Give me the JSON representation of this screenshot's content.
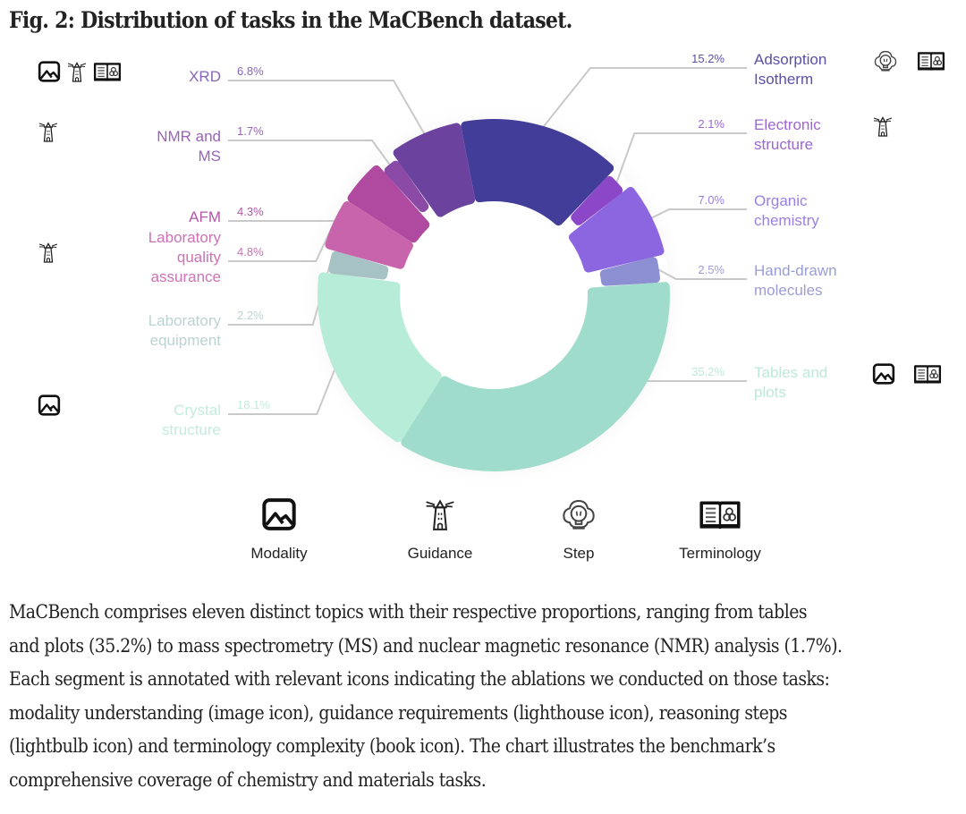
{
  "figure": {
    "title": "Fig. 2: Distribution of tasks in the MaCBench dataset."
  },
  "chart_data": {
    "type": "pie",
    "variant": "donut",
    "title": "Distribution of tasks in the MaCBench dataset",
    "order": "clockwise from top",
    "segments": [
      {
        "name": "Adsorption Isotherm",
        "label_lines": [
          "Adsorption",
          "Isotherm"
        ],
        "value": 15.2,
        "pct_label": "15.2%",
        "color": "#433d9a",
        "text_color": "#5b4fa8",
        "side": "right",
        "icons": [
          "step-icon",
          "terminology-icon"
        ]
      },
      {
        "name": "Electronic structure",
        "label_lines": [
          "Electronic",
          "structure"
        ],
        "value": 2.1,
        "pct_label": "2.1%",
        "color": "#8b47c8",
        "text_color": "#9d66d6",
        "side": "right",
        "icons": [
          "guidance-icon"
        ]
      },
      {
        "name": "Organic chemistry",
        "label_lines": [
          "Organic",
          "chemistry"
        ],
        "value": 7.0,
        "pct_label": "7.0%",
        "color": "#8c65e0",
        "text_color": "#9a80e3",
        "side": "right",
        "icons": []
      },
      {
        "name": "Hand-drawn molecules",
        "label_lines": [
          "Hand-drawn",
          "molecules"
        ],
        "value": 2.5,
        "pct_label": "2.5%",
        "color": "#8c8fd2",
        "text_color": "#9b9dd6",
        "side": "right",
        "icons": []
      },
      {
        "name": "Tables and plots",
        "label_lines": [
          "Tables and",
          "plots"
        ],
        "value": 35.2,
        "pct_label": "35.2%",
        "color": "#a0dccb",
        "text_color": "#bde8da",
        "side": "right",
        "icons": [
          "modality-icon",
          "terminology-icon"
        ]
      },
      {
        "name": "Crystal structure",
        "label_lines": [
          "Crystal",
          "structure"
        ],
        "value": 18.1,
        "pct_label": "18.1%",
        "color": "#b7ecd9",
        "text_color": "#c2ecdc",
        "side": "left",
        "icons": [
          "modality-icon"
        ]
      },
      {
        "name": "Laboratory equipment",
        "label_lines": [
          "Laboratory",
          "equipment"
        ],
        "value": 2.2,
        "pct_label": "2.2%",
        "color": "#a6c2c5",
        "text_color": "#bcd3d2",
        "side": "left",
        "icons": []
      },
      {
        "name": "Laboratory quality assurance",
        "label_lines": [
          "Laboratory",
          "quality",
          "assurance"
        ],
        "value": 4.8,
        "pct_label": "4.8%",
        "color": "#c764ac",
        "text_color": "#cc72b5",
        "side": "left",
        "icons": [
          "guidance-icon"
        ]
      },
      {
        "name": "AFM",
        "label_lines": [
          "AFM"
        ],
        "value": 4.3,
        "pct_label": "4.3%",
        "color": "#b04aa0",
        "text_color": "#b456a8",
        "side": "left",
        "icons": []
      },
      {
        "name": "NMR and MS",
        "label_lines": [
          "NMR and",
          "MS"
        ],
        "value": 1.7,
        "pct_label": "1.7%",
        "color": "#8a4aa6",
        "text_color": "#9a62b8",
        "side": "left",
        "icons": [
          "guidance-icon"
        ]
      },
      {
        "name": "XRD",
        "label_lines": [
          "XRD"
        ],
        "value": 6.8,
        "pct_label": "6.8%",
        "color": "#6b429e",
        "text_color": "#8766b6",
        "side": "left",
        "icons": [
          "modality-icon",
          "guidance-icon",
          "terminology-icon"
        ]
      }
    ],
    "legend": [
      {
        "icon": "modality-icon",
        "label": "Modality"
      },
      {
        "icon": "guidance-icon",
        "label": "Guidance"
      },
      {
        "icon": "step-icon",
        "label": "Step"
      },
      {
        "icon": "terminology-icon",
        "label": "Terminology"
      }
    ],
    "legend_placement": "bottom"
  },
  "caption": {
    "text": "MaCBench comprises eleven distinct topics with their respective proportions, ranging from tables and plots (35.2%) to mass spectrometry (MS) and nuclear magnetic resonance (NMR) analysis (1.7%). Each segment is annotated with relevant icons indicating the ablations we conducted on those tasks: modality understanding (image icon), guidance requirements (lighthouse icon), reasoning steps (lightbulb icon) and terminology complexity (book icon). The chart illustrates the benchmark’s comprehensive coverage of chemistry and materials tasks.",
    "lines": [
      "MaCBench comprises eleven distinct topics with their respective proportions, ranging from tables",
      "and plots (35.2%) to mass spectrometry (MS) and nuclear magnetic resonance (NMR) analysis (1.7%).",
      "Each segment is annotated with relevant icons indicating the ablations we conducted on those tasks:",
      "modality understanding (image icon), guidance requirements (lighthouse icon), reasoning steps",
      "(lightbulb icon) and terminology complexity (book icon). The chart illustrates the benchmark’s",
      "comprehensive coverage of chemistry and materials tasks."
    ]
  }
}
